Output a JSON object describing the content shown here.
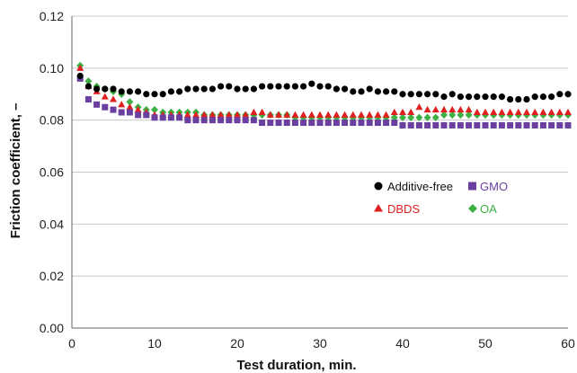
{
  "chart_data": {
    "type": "scatter",
    "xlabel": "Test duration, min.",
    "ylabel": "Friction coefficient, –",
    "xlim": [
      0,
      60
    ],
    "ylim": [
      0,
      0.12
    ],
    "x_ticks": [
      0,
      10,
      20,
      30,
      40,
      50,
      60
    ],
    "y_ticks": [
      "0.00",
      "0.02",
      "0.04",
      "0.06",
      "0.08",
      "0.10",
      "0.12"
    ],
    "grid": "horizontal",
    "legend_placement": "inside-right",
    "x": [
      1,
      2,
      3,
      4,
      5,
      6,
      7,
      8,
      9,
      10,
      11,
      12,
      13,
      14,
      15,
      16,
      17,
      18,
      19,
      20,
      21,
      22,
      23,
      24,
      25,
      26,
      27,
      28,
      29,
      30,
      31,
      32,
      33,
      34,
      35,
      36,
      37,
      38,
      39,
      40,
      41,
      42,
      43,
      44,
      45,
      46,
      47,
      48,
      49,
      50,
      51,
      52,
      53,
      54,
      55,
      56,
      57,
      58,
      59,
      60
    ],
    "series": [
      {
        "name": "Additive-free",
        "marker": "circle",
        "color": "#000000",
        "values": [
          0.097,
          0.093,
          0.092,
          0.092,
          0.092,
          0.091,
          0.091,
          0.091,
          0.09,
          0.09,
          0.09,
          0.091,
          0.091,
          0.092,
          0.092,
          0.092,
          0.092,
          0.093,
          0.093,
          0.092,
          0.092,
          0.092,
          0.093,
          0.093,
          0.093,
          0.093,
          0.093,
          0.093,
          0.094,
          0.093,
          0.093,
          0.092,
          0.092,
          0.091,
          0.091,
          0.092,
          0.091,
          0.091,
          0.091,
          0.09,
          0.09,
          0.09,
          0.09,
          0.09,
          0.089,
          0.09,
          0.089,
          0.089,
          0.089,
          0.089,
          0.089,
          0.089,
          0.088,
          0.088,
          0.088,
          0.089,
          0.089,
          0.089,
          0.09,
          0.09
        ]
      },
      {
        "name": "GMO",
        "marker": "square",
        "color": "#6a3fa0",
        "values": [
          0.096,
          0.088,
          0.086,
          0.085,
          0.084,
          0.083,
          0.083,
          0.082,
          0.082,
          0.081,
          0.081,
          0.081,
          0.081,
          0.08,
          0.08,
          0.08,
          0.08,
          0.08,
          0.08,
          0.08,
          0.08,
          0.08,
          0.079,
          0.079,
          0.079,
          0.079,
          0.079,
          0.079,
          0.079,
          0.079,
          0.079,
          0.079,
          0.079,
          0.079,
          0.079,
          0.079,
          0.079,
          0.079,
          0.079,
          0.078,
          0.078,
          0.078,
          0.078,
          0.078,
          0.078,
          0.078,
          0.078,
          0.078,
          0.078,
          0.078,
          0.078,
          0.078,
          0.078,
          0.078,
          0.078,
          0.078,
          0.078,
          0.078,
          0.078,
          0.078
        ]
      },
      {
        "name": "DBDS",
        "marker": "triangle",
        "color": "#e02020",
        "values": [
          0.1,
          0.093,
          0.091,
          0.089,
          0.088,
          0.086,
          0.085,
          0.084,
          0.083,
          0.082,
          0.082,
          0.082,
          0.082,
          0.082,
          0.082,
          0.082,
          0.082,
          0.082,
          0.082,
          0.082,
          0.082,
          0.083,
          0.083,
          0.082,
          0.082,
          0.082,
          0.082,
          0.082,
          0.082,
          0.082,
          0.082,
          0.082,
          0.082,
          0.082,
          0.082,
          0.082,
          0.082,
          0.082,
          0.083,
          0.083,
          0.083,
          0.085,
          0.084,
          0.084,
          0.084,
          0.084,
          0.084,
          0.084,
          0.083,
          0.083,
          0.083,
          0.083,
          0.083,
          0.083,
          0.083,
          0.083,
          0.083,
          0.083,
          0.083,
          0.083
        ]
      },
      {
        "name": "OA",
        "marker": "diamond",
        "color": "#3cb043",
        "values": [
          0.101,
          0.095,
          0.093,
          0.092,
          0.091,
          0.09,
          0.087,
          0.085,
          0.084,
          0.084,
          0.083,
          0.083,
          0.083,
          0.083,
          0.083,
          0.082,
          0.082,
          0.082,
          0.082,
          0.082,
          0.082,
          0.082,
          0.082,
          0.082,
          0.082,
          0.082,
          0.081,
          0.081,
          0.081,
          0.081,
          0.081,
          0.081,
          0.081,
          0.081,
          0.081,
          0.081,
          0.081,
          0.081,
          0.081,
          0.081,
          0.081,
          0.081,
          0.081,
          0.081,
          0.082,
          0.082,
          0.082,
          0.082,
          0.082,
          0.082,
          0.082,
          0.082,
          0.082,
          0.082,
          0.082,
          0.082,
          0.082,
          0.082,
          0.082,
          0.082
        ]
      }
    ]
  }
}
